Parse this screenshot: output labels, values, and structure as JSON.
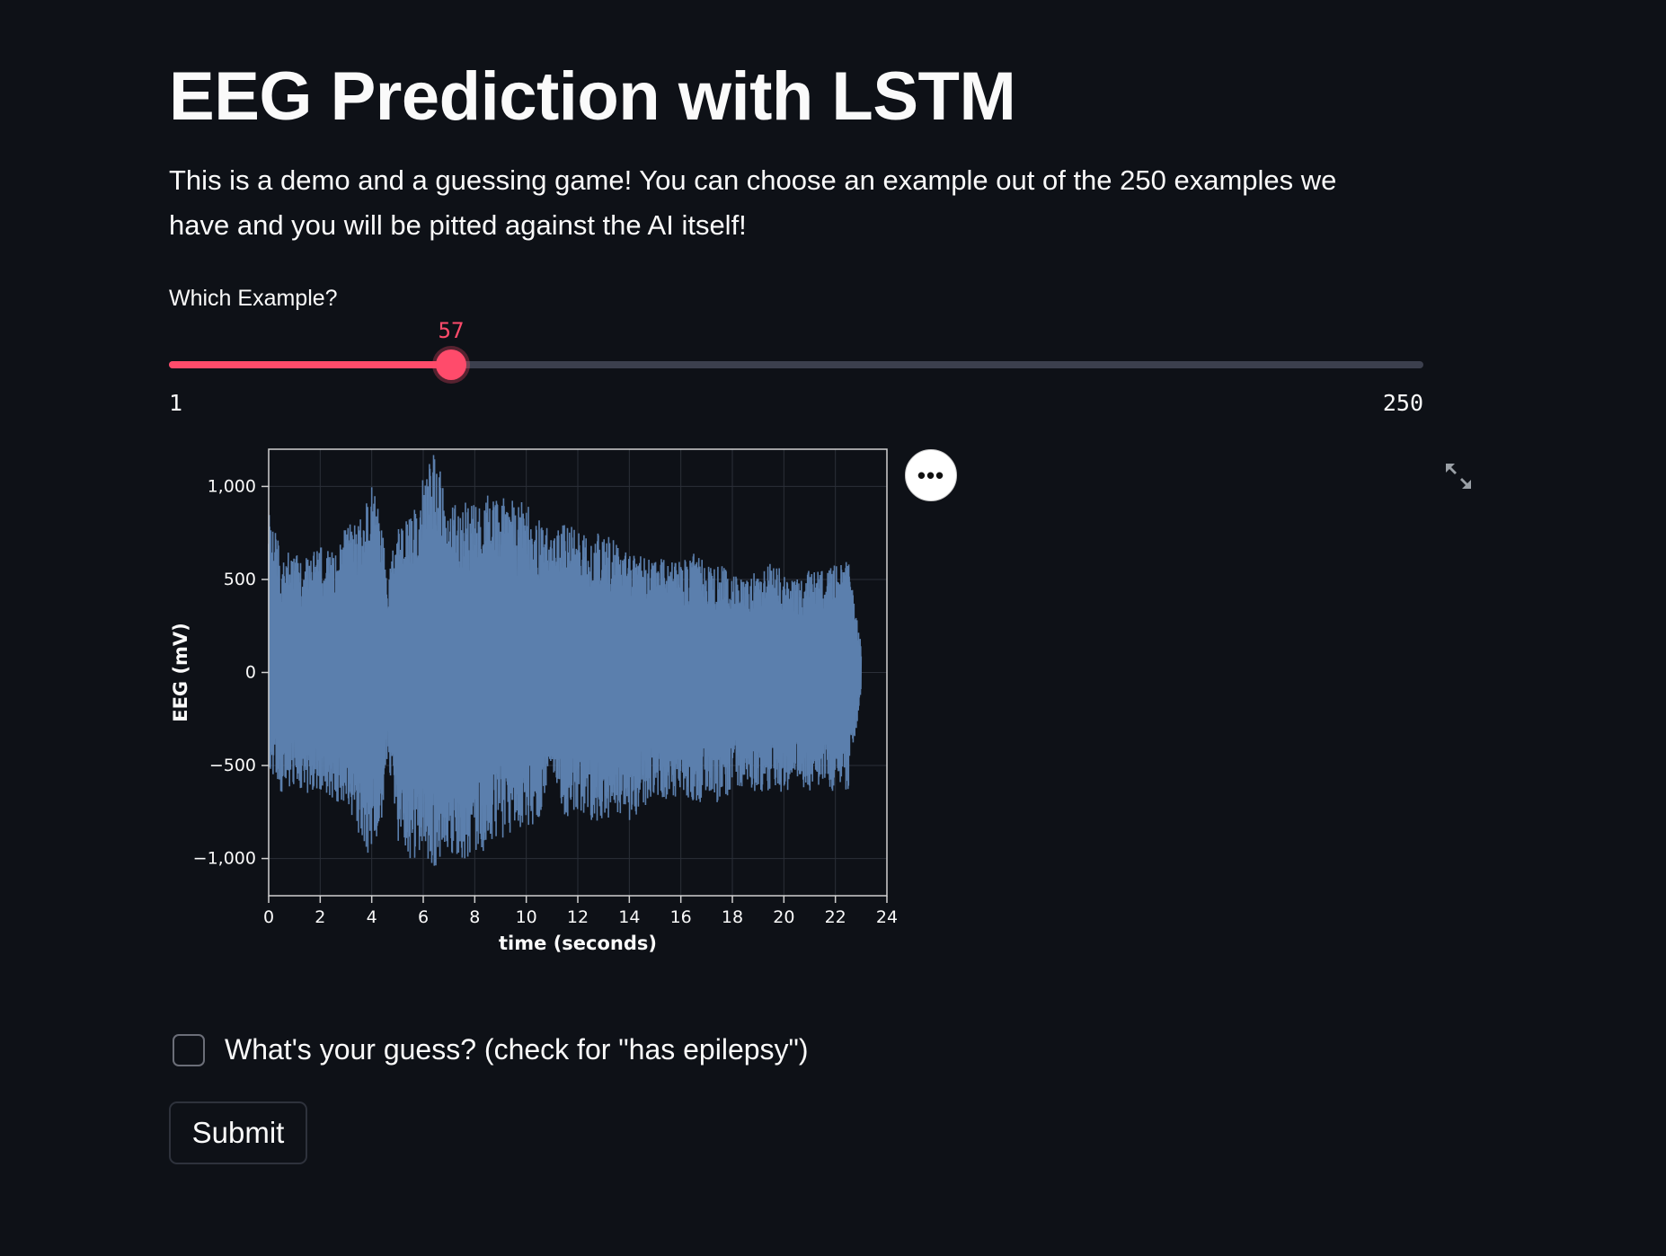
{
  "title": "EEG Prediction with LSTM",
  "intro": "This is a demo and a guessing game! You can choose an example out of the 250 examples we have and you will be pitted against the AI itself!",
  "slider": {
    "label": "Which Example?",
    "min": 1,
    "max": 250,
    "value": 57,
    "min_label": "1",
    "max_label": "250",
    "value_label": "57"
  },
  "chart_menu_icon": "ellipsis-icon",
  "expand_icon": "fullscreen-expand-icon",
  "checkbox": {
    "label": "What's your guess? (check for \"has epilepsy\")",
    "checked": false
  },
  "submit_label": "Submit",
  "colors": {
    "background": "#0e1117",
    "accent": "#ff4b6b",
    "series": "#5b7fad",
    "text": "#fafafa"
  },
  "chart_data": {
    "type": "line",
    "title": "",
    "xlabel": "time (seconds)",
    "ylabel": "EEG (mV)",
    "xlim": [
      0,
      24
    ],
    "ylim": [
      -1200,
      1200
    ],
    "xticks": [
      "0",
      "2",
      "4",
      "6",
      "8",
      "10",
      "12",
      "14",
      "16",
      "18",
      "20",
      "22",
      "24"
    ],
    "yticks": [
      "1,000",
      "500",
      "0",
      "−500",
      "−1,000"
    ],
    "ytick_values": [
      1000,
      500,
      0,
      -500,
      -1000
    ],
    "grid": true,
    "series": [
      {
        "name": "",
        "envelope_time": [
          0,
          0.5,
          1,
          1.5,
          2,
          2.5,
          3,
          3.5,
          4,
          4.3,
          4.6,
          5,
          5.5,
          6,
          6.5,
          7,
          7.5,
          8,
          8.5,
          9,
          9.5,
          10,
          10.5,
          11,
          11.5,
          12,
          12.5,
          13,
          13.5,
          14,
          14.5,
          15,
          15.5,
          16,
          16.5,
          17,
          17.5,
          18,
          18.5,
          19,
          19.5,
          20,
          20.5,
          21,
          21.5,
          22,
          22.5,
          23
        ],
        "envelope_max": [
          900,
          650,
          650,
          620,
          700,
          650,
          800,
          800,
          1000,
          1050,
          500,
          800,
          850,
          1050,
          1200,
          900,
          900,
          950,
          980,
          950,
          950,
          900,
          850,
          750,
          800,
          800,
          750,
          750,
          700,
          650,
          650,
          600,
          650,
          600,
          650,
          600,
          600,
          550,
          500,
          550,
          600,
          550,
          500,
          550,
          550,
          600,
          600,
          150
        ],
        "envelope_min": [
          -500,
          -650,
          -600,
          -650,
          -650,
          -700,
          -700,
          -900,
          -1000,
          -900,
          -500,
          -900,
          -1000,
          -1000,
          -1100,
          -1000,
          -1000,
          -1000,
          -950,
          -900,
          -850,
          -850,
          -800,
          -500,
          -800,
          -750,
          -800,
          -800,
          -750,
          -800,
          -750,
          -650,
          -700,
          -650,
          -700,
          -700,
          -700,
          -650,
          -600,
          -650,
          -650,
          -650,
          -600,
          -650,
          -600,
          -650,
          -650,
          -100
        ]
      }
    ]
  }
}
